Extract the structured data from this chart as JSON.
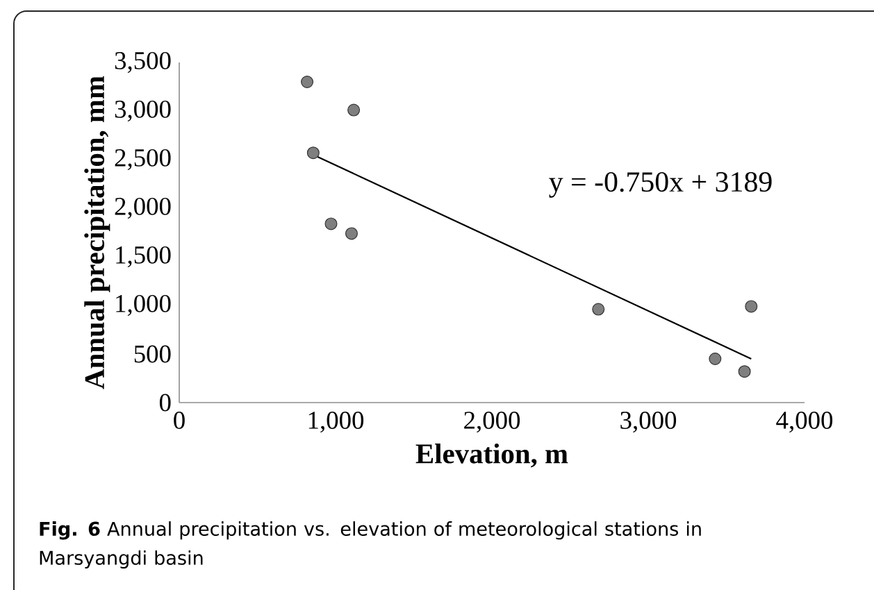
{
  "chart_data": {
    "type": "scatter",
    "xlabel": "Elevation, m",
    "ylabel": "Annual precipitation, mm",
    "annotations": [
      "y = -0.750x + 3189",
      "**Fig. 6** Annual precipitation vs. elevation of meteorological stations in Marsyangdi basin"
    ],
    "series": [
      {
        "color": "#7f7f7f",
        "marker": "circle",
        "x": [
          818,
          1116,
          857,
          971,
          1102,
          2681,
          3659,
          3428,
          3616
        ],
        "values": [
          3300,
          3010,
          2570,
          1840,
          1740,
          960,
          990,
          450,
          320
        ]
      },
      {
        "type": "line",
        "color": "#000000",
        "marker": "none",
        "x": [
          857,
          3659
        ],
        "values": [
          2550,
          450
        ]
      }
    ],
    "xlim": [
      0,
      4000
    ],
    "ylim": [
      0,
      3500
    ],
    "xticks": [
      {
        "value": 0,
        "label": "0"
      },
      {
        "value": 1000,
        "label": "1,000"
      },
      {
        "value": 2000,
        "label": "2,000"
      },
      {
        "value": 3000,
        "label": "3,000"
      },
      {
        "value": 4000,
        "label": "4,000"
      }
    ],
    "yticks": [
      {
        "value": 0,
        "label": "0"
      },
      {
        "value": 500,
        "label": "500"
      },
      {
        "value": 1000,
        "label": "1,000"
      },
      {
        "value": 1500,
        "label": "1,500"
      },
      {
        "value": 2000,
        "label": "2,000"
      },
      {
        "value": 2500,
        "label": "2,500"
      },
      {
        "value": 3000,
        "label": "3,000"
      },
      {
        "value": 3500,
        "label": "3,500"
      }
    ]
  }
}
